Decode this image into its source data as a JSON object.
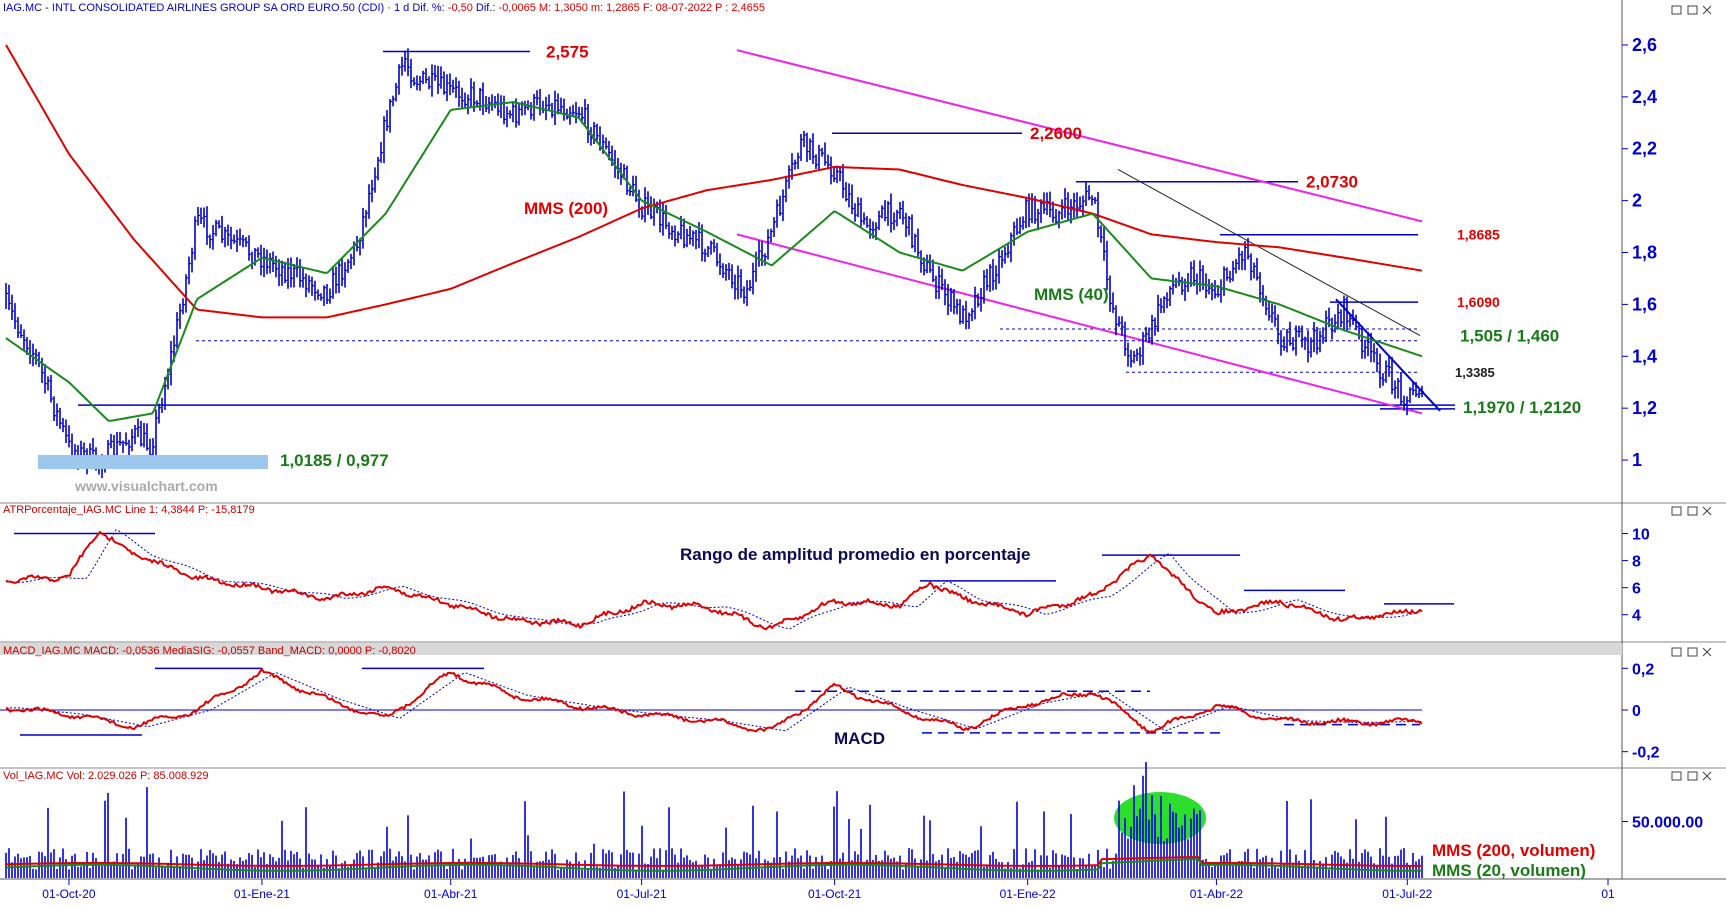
{
  "watermark": "www.visualchart.com",
  "panels": {
    "price": {
      "header": "IAG.MC - INTL CONSOLIDATED AIRLINES GROUP SA ORD EURO.50 (CDI) · 1 d  Dif. %: -0,50  Dif.: -0,0065  M: 1,3050  m: 1,2865  F: 08-07-2022  P : 2,4655",
      "header_prefix": "IAG.MC - INTL CONSOLIDATED AIRLINES GROUP SA ORD EURO.50 (CDI) · 1 d  Dif. %: ",
      "header_mid": "  Dif.: ",
      "header_tail": "  M: 1,3050  m: 1,2865  F: 08-07-2022  P : 2,4655",
      "header_diff_pct": "-0,50",
      "header_diff": "-0,0065",
      "axis_ticks": [
        "2,6",
        "2,4",
        "2,2",
        "2",
        "1,8",
        "1,6",
        "1,4",
        "1,2",
        "1"
      ],
      "levels": [
        "2,575",
        "2,2600",
        "2,0730",
        "1,8685",
        "1,6090",
        "1,505 / 1,460",
        "1,3385",
        "1,1970 / 1,2120",
        "1,0185 / 0,977"
      ],
      "ma_labels": [
        "MMS (200)",
        "MMS (40)"
      ]
    },
    "atr": {
      "header": "ATRPorcentaje_IAG.MC  Line 1: 4,3844  P: -15,8179",
      "annotation": "Rango de amplitud promedio en porcentaje",
      "axis_ticks": [
        "10",
        "8",
        "6",
        "4"
      ]
    },
    "macd": {
      "header": "MACD_IAG.MC  MACD: -0,0536  MediaSIG: -0,0557  Band_MACD: 0,0000  P: -0,8020",
      "label": "MACD",
      "axis_ticks": [
        "0,2",
        "0",
        "-0,2"
      ]
    },
    "volume": {
      "header": "Vol_IAG.MC  Vol: 2.029.026  P: 85.008.929",
      "axis_ticks": [
        "50.000.00"
      ],
      "ma_labels": [
        "MMS (200, volumen)",
        "MMS (20, volumen)"
      ]
    }
  },
  "x_axis": [
    "01-Oct-20",
    "01-Ene-21",
    "01-Abr-21",
    "01-Jul-21",
    "01-Oct-21",
    "01-Ene-22",
    "01-Abr-22",
    "01-Jul-22",
    "01"
  ],
  "colors": {
    "price": "#0000cc",
    "ma200": "#e00000",
    "ma40": "#1a8a1a",
    "channel": "#ee22ee",
    "level": "#0000cc",
    "label_red": "#e00000",
    "label_green": "#1a7a1a",
    "vol": "#0000dd",
    "volume_blob": "#22dd22"
  },
  "chart_data": {
    "type": "line",
    "title": "",
    "price": {
      "x": [
        "2020-09-01",
        "2020-09-15",
        "2020-10-01",
        "2020-10-15",
        "2020-11-01",
        "2020-11-09",
        "2020-11-20",
        "2020-12-01",
        "2020-12-15",
        "2021-01-01",
        "2021-01-15",
        "2021-02-01",
        "2021-02-15",
        "2021-03-01",
        "2021-03-10",
        "2021-03-15",
        "2021-04-01",
        "2021-04-15",
        "2021-05-01",
        "2021-05-15",
        "2021-06-01",
        "2021-06-15",
        "2021-07-01",
        "2021-07-15",
        "2021-08-01",
        "2021-08-20",
        "2021-09-01",
        "2021-09-15",
        "2021-10-01",
        "2021-10-15",
        "2021-11-01",
        "2021-11-15",
        "2021-12-01",
        "2021-12-15",
        "2022-01-01",
        "2022-01-15",
        "2022-02-01",
        "2022-02-10",
        "2022-02-20",
        "2022-03-01",
        "2022-03-08",
        "2022-03-20",
        "2022-04-01",
        "2022-04-15",
        "2022-05-01",
        "2022-05-15",
        "2022-06-01",
        "2022-06-15",
        "2022-07-01",
        "2022-07-08"
      ],
      "y": [
        1.6,
        1.4,
        1.05,
        0.99,
        1.1,
        1.05,
        1.45,
        1.92,
        1.85,
        1.78,
        1.72,
        1.65,
        1.82,
        2.3,
        2.55,
        2.47,
        2.42,
        2.4,
        2.33,
        2.38,
        2.35,
        2.18,
        1.98,
        1.9,
        1.82,
        1.65,
        1.88,
        2.22,
        2.12,
        1.9,
        1.97,
        1.72,
        1.55,
        1.72,
        1.97,
        1.95,
        2.02,
        1.6,
        1.38,
        1.5,
        1.65,
        1.72,
        1.65,
        1.82,
        1.48,
        1.44,
        1.58,
        1.38,
        1.24,
        1.29
      ]
    },
    "ma200": {
      "x": [
        "2020-09-01",
        "2020-10-01",
        "2020-11-01",
        "2020-12-01",
        "2021-01-01",
        "2021-02-01",
        "2021-03-01",
        "2021-04-01",
        "2021-05-01",
        "2021-06-01",
        "2021-07-01",
        "2021-08-01",
        "2021-09-01",
        "2021-10-01",
        "2021-11-01",
        "2021-12-01",
        "2022-01-01",
        "2022-02-01",
        "2022-03-01",
        "2022-04-01",
        "2022-05-01",
        "2022-06-01",
        "2022-07-08"
      ],
      "y": [
        2.6,
        2.18,
        1.85,
        1.58,
        1.55,
        1.55,
        1.6,
        1.66,
        1.76,
        1.86,
        1.97,
        2.04,
        2.08,
        2.13,
        2.12,
        2.06,
        2.01,
        1.95,
        1.87,
        1.84,
        1.82,
        1.78,
        1.73
      ]
    },
    "ma40": {
      "x": [
        "2020-09-01",
        "2020-10-01",
        "2020-10-20",
        "2020-11-10",
        "2020-12-01",
        "2021-01-01",
        "2021-02-01",
        "2021-03-01",
        "2021-04-01",
        "2021-05-01",
        "2021-06-01",
        "2021-07-01",
        "2021-08-01",
        "2021-09-01",
        "2021-10-01",
        "2021-11-01",
        "2021-12-01",
        "2022-01-01",
        "2022-02-01",
        "2022-03-01",
        "2022-04-01",
        "2022-05-01",
        "2022-06-01",
        "2022-07-08"
      ],
      "y": [
        1.47,
        1.3,
        1.15,
        1.18,
        1.62,
        1.78,
        1.72,
        1.95,
        2.35,
        2.38,
        2.32,
        2.0,
        1.88,
        1.75,
        1.96,
        1.8,
        1.73,
        1.88,
        1.95,
        1.7,
        1.67,
        1.6,
        1.5,
        1.4
      ]
    },
    "channel_upper": {
      "x": [
        "2021-02-01",
        "2022-07-08"
      ],
      "y": [
        2.58,
        1.92
      ]
    },
    "channel_lower": {
      "x": [
        "2021-02-01",
        "2022-07-08"
      ],
      "y": [
        1.87,
        1.18
      ]
    },
    "levels": [
      2.575,
      2.26,
      2.073,
      1.8685,
      1.609,
      1.505,
      1.46,
      1.3385,
      1.197,
      1.212,
      1.0185,
      0.977
    ],
    "ylim": [
      0.9,
      2.65
    ],
    "atr": {
      "x": [
        "2020-09-01",
        "2020-10-01",
        "2020-10-15",
        "2020-11-01",
        "2020-12-01",
        "2021-01-01",
        "2021-02-01",
        "2021-03-01",
        "2021-04-01",
        "2021-05-01",
        "2021-06-01",
        "2021-07-01",
        "2021-08-01",
        "2021-09-01",
        "2021-10-01",
        "2021-11-01",
        "2021-11-15",
        "2021-12-01",
        "2022-01-01",
        "2022-02-01",
        "2022-03-01",
        "2022-03-10",
        "2022-04-01",
        "2022-05-01",
        "2022-06-01",
        "2022-07-08"
      ],
      "y": [
        6.5,
        6.8,
        10.2,
        8.5,
        6.7,
        6.0,
        5.2,
        6.0,
        4.8,
        3.6,
        3.3,
        4.8,
        4.6,
        3.0,
        5.0,
        4.7,
        6.4,
        5.2,
        4.1,
        5.4,
        8.5,
        7.0,
        4.0,
        5.0,
        3.6,
        4.4
      ],
      "ylim": [
        2.5,
        11
      ]
    },
    "macd": {
      "x": [
        "2020-09-01",
        "2020-10-01",
        "2020-11-01",
        "2020-12-01",
        "2021-01-01",
        "2021-02-01",
        "2021-03-01",
        "2021-04-01",
        "2021-05-01",
        "2021-06-01",
        "2021-07-01",
        "2021-08-01",
        "2021-09-01",
        "2021-10-01",
        "2021-11-01",
        "2021-12-01",
        "2022-01-01",
        "2022-02-01",
        "2022-03-01",
        "2022-04-01",
        "2022-05-01",
        "2022-06-01",
        "2022-07-08"
      ],
      "y": [
        0.01,
        -0.02,
        -0.08,
        0.0,
        0.18,
        0.05,
        -0.04,
        0.18,
        0.07,
        0.02,
        -0.02,
        -0.05,
        -0.1,
        0.11,
        0.0,
        -0.09,
        0.03,
        0.09,
        -0.1,
        0.02,
        -0.05,
        -0.06,
        -0.054
      ],
      "ylim": [
        -0.24,
        0.24
      ]
    },
    "volume": {
      "ma200_level": 12000000,
      "ma20_level": 9000000,
      "ylim": [
        0,
        85000000
      ]
    }
  }
}
